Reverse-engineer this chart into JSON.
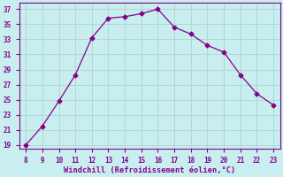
{
  "x": [
    8,
    9,
    10,
    11,
    12,
    13,
    14,
    15,
    16,
    17,
    18,
    19,
    20,
    21,
    22,
    23
  ],
  "y": [
    19,
    21.5,
    24.8,
    28.3,
    33.2,
    35.8,
    36.0,
    36.4,
    37.0,
    34.6,
    33.7,
    32.2,
    31.3,
    28.3,
    25.8,
    24.3
  ],
  "line_color": "#880088",
  "marker": "D",
  "marker_size": 2.5,
  "background_color": "#c8eef0",
  "grid_color": "#b0d8d8",
  "xlabel": "Windchill (Refroidissement éolien,°C)",
  "xlabel_color": "#880088",
  "tick_color": "#880088",
  "ylim": [
    18.5,
    37.8
  ],
  "xlim": [
    7.6,
    23.4
  ],
  "yticks": [
    19,
    21,
    23,
    25,
    27,
    29,
    31,
    33,
    35,
    37
  ],
  "xticks": [
    8,
    9,
    10,
    11,
    12,
    13,
    14,
    15,
    16,
    17,
    18,
    19,
    20,
    21,
    22,
    23
  ]
}
